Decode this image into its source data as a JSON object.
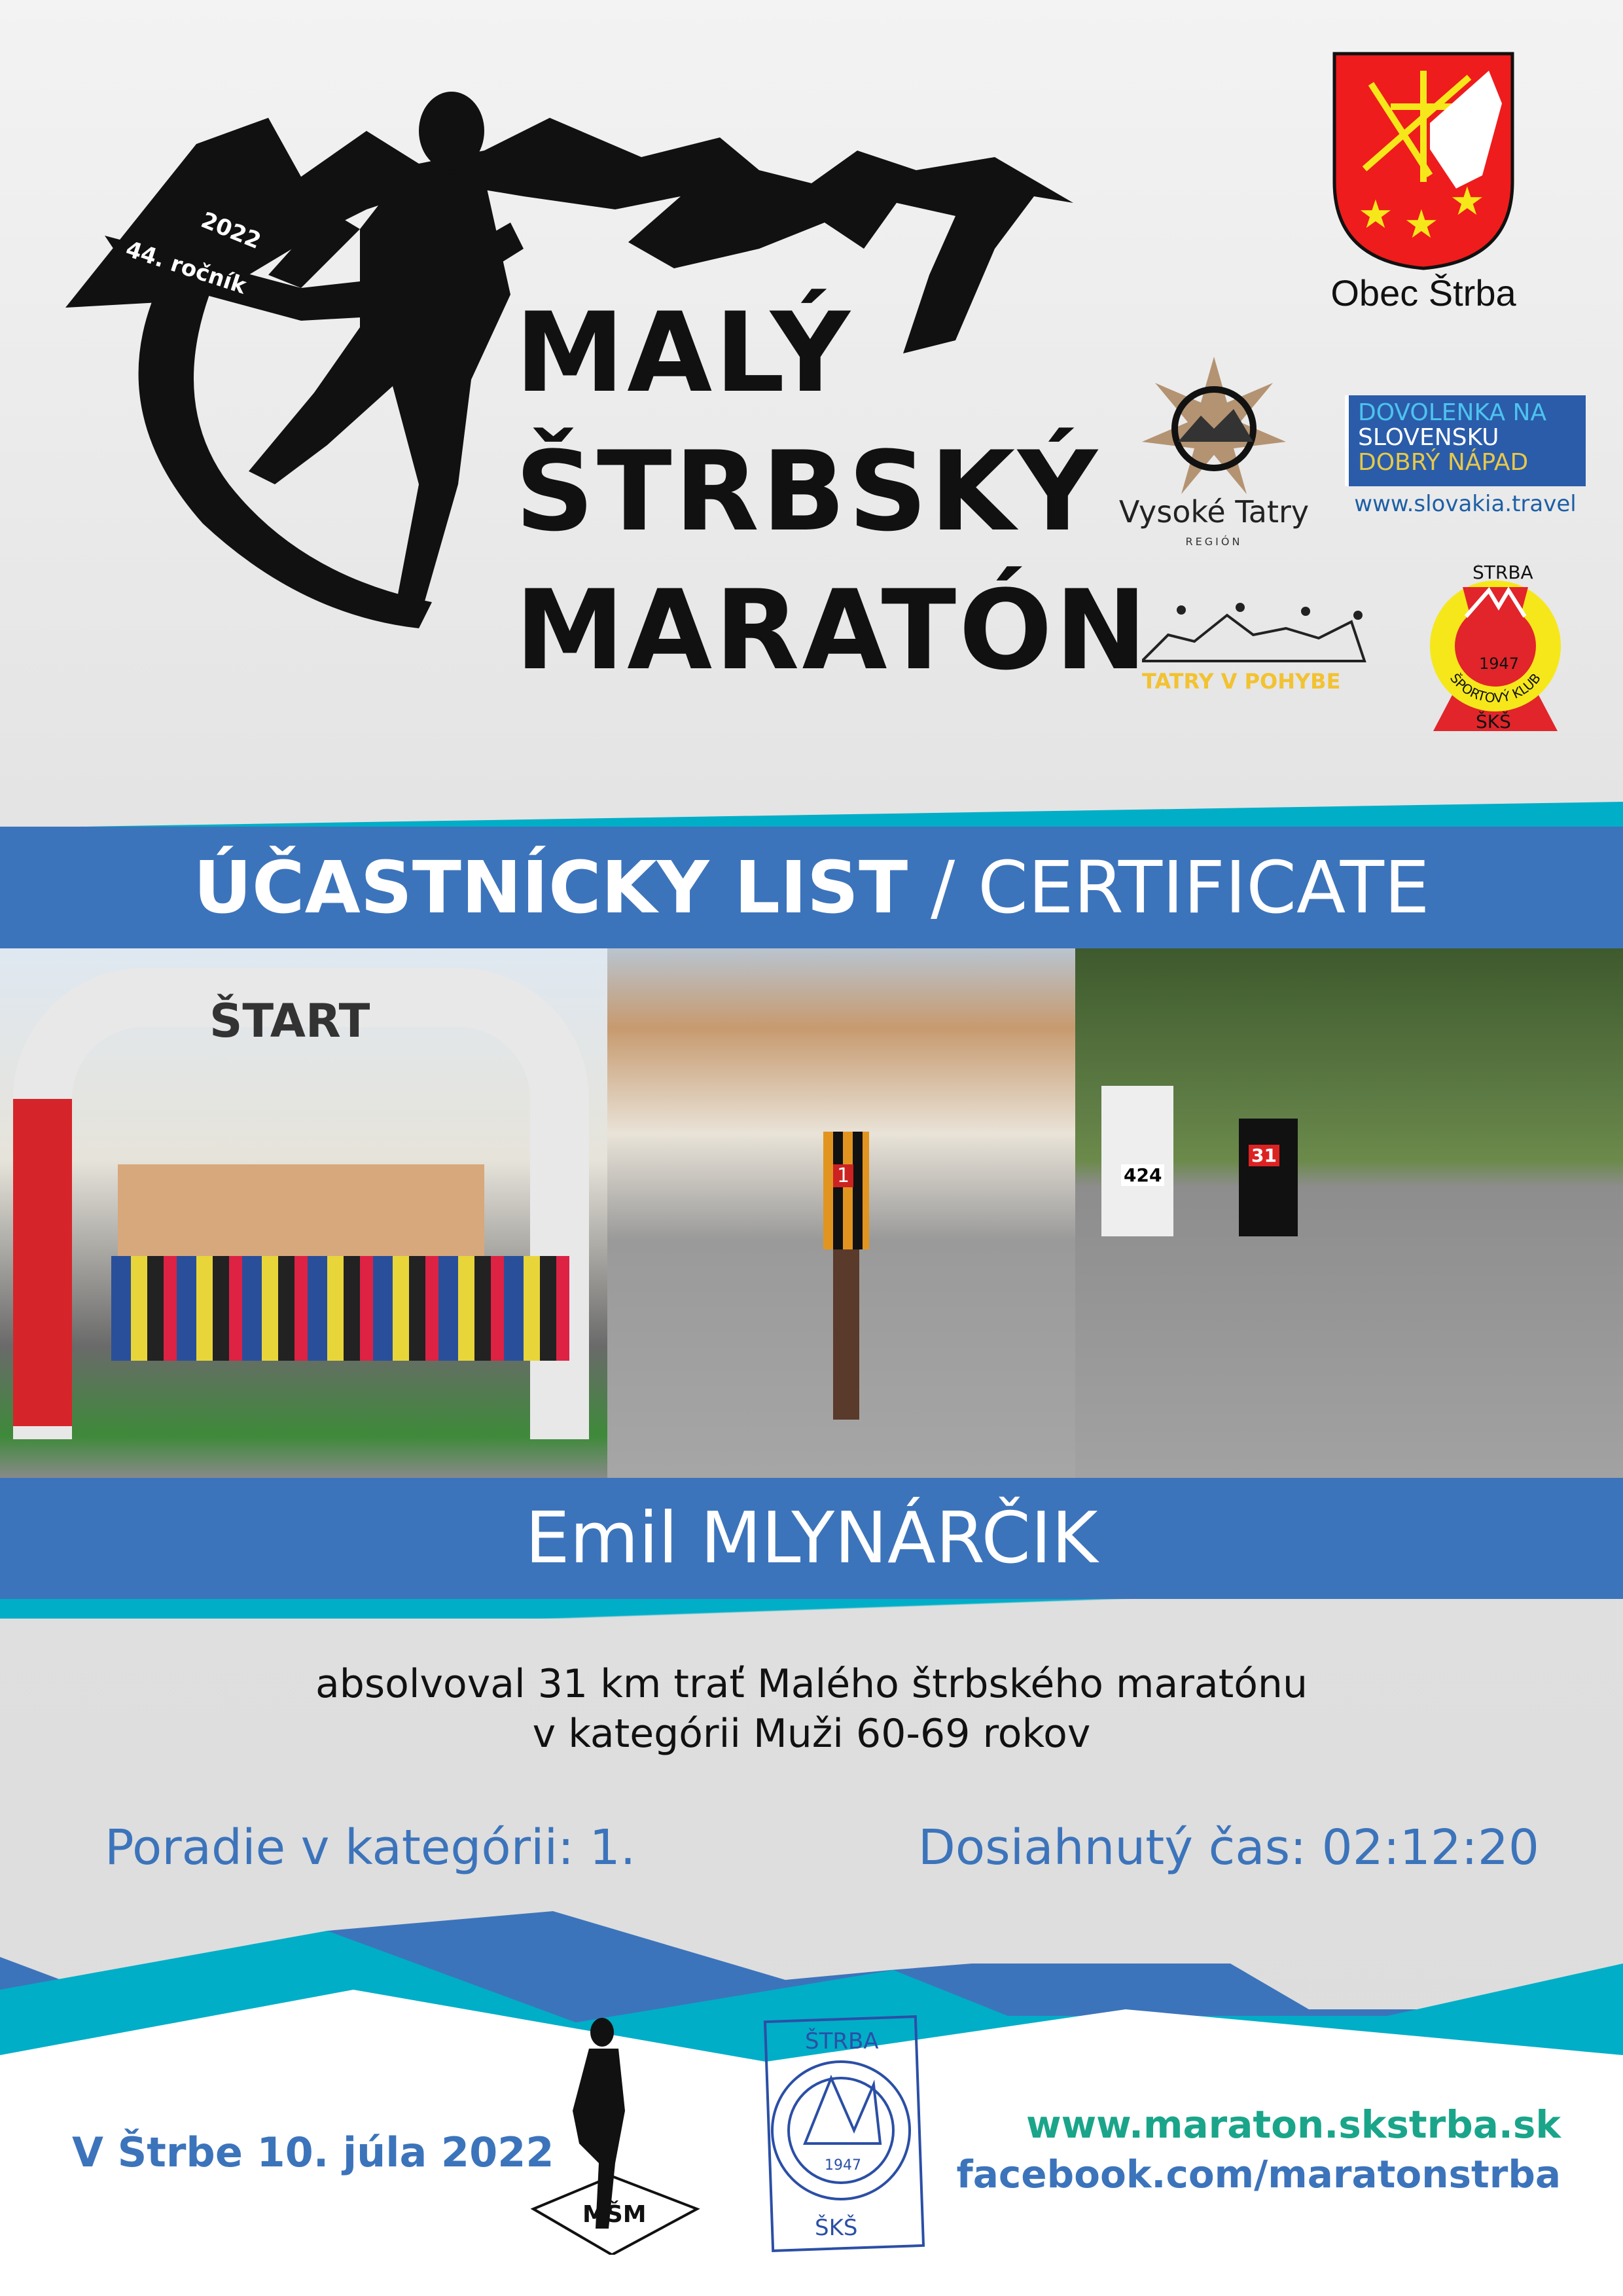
{
  "event": {
    "edition_year": "2022",
    "edition": "44. ročník",
    "title_lines": [
      "MALÝ",
      "ŠTRBSKÝ",
      "MARATÓN"
    ]
  },
  "sponsors": {
    "obec": "Obec Štrba",
    "vysoke_tatry": {
      "name": "Vysoké Tatry",
      "sub": "REGIÓN"
    },
    "slovakia": {
      "line1": "DOVOLENKA NA",
      "line2": "SLOVENSKU",
      "line3": "DOBRÝ NÁPAD",
      "url": "www.slovakia.travel"
    },
    "tatry_v_pohybe": "TATRY V POHYBE",
    "sks": {
      "top": "ŠTRBA",
      "year": "1947",
      "ring": "ŠPORTOVÝ KLUB",
      "bottom": "ŠKŠ"
    }
  },
  "certificate": {
    "title_bold": "ÚČASTNÍCKY LIST",
    "title_rest": " / CERTIFICATE"
  },
  "photos": {
    "start_banner": "ŠTART",
    "bibs": [
      "424",
      "31",
      "1"
    ]
  },
  "participant": {
    "name": "Emil MLYNÁRČIK"
  },
  "body": {
    "line1": "absolvoval 31 km trať Malého štrbského maratónu",
    "line2": "v kategórii Muži 60-69 rokov"
  },
  "results": {
    "rank": "Poradie v kategórii: 1.",
    "time": "Dosiahnutý čas: 02:12:20"
  },
  "footer": {
    "date": "V Štrbe 10. júla 2022",
    "website": "www.maraton.skstrba.sk",
    "facebook": "facebook.com/maratonstrba",
    "msm_logo": "MŠM"
  },
  "colors": {
    "blue": "#3c74bb",
    "teal": "#00aec7",
    "green": "#1aa58a"
  }
}
